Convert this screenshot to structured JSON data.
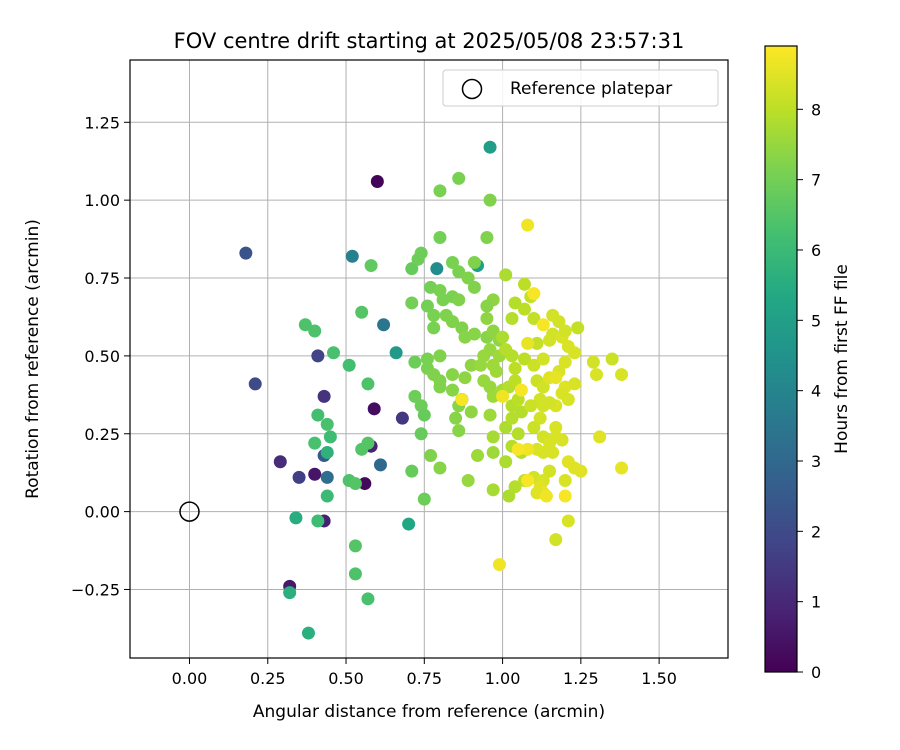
{
  "chart_data": {
    "type": "scatter",
    "title": "FOV centre drift starting at 2025/05/08 23:57:31",
    "xlabel": "Angular distance from reference (arcmin)",
    "ylabel": "Rotation from reference (arcmin)",
    "xlim": [
      -0.19,
      1.72
    ],
    "ylim": [
      -0.47,
      1.45
    ],
    "x_ticks": [
      0.0,
      0.25,
      0.5,
      0.75,
      1.0,
      1.25,
      1.5
    ],
    "x_tick_labels": [
      "0.00",
      "0.25",
      "0.50",
      "0.75",
      "1.00",
      "1.25",
      "1.50"
    ],
    "y_ticks": [
      -0.25,
      0.0,
      0.25,
      0.5,
      0.75,
      1.0,
      1.25
    ],
    "y_tick_labels": [
      "−0.25",
      "0.00",
      "0.25",
      "0.50",
      "0.75",
      "1.00",
      "1.25"
    ],
    "grid": true,
    "legend": {
      "placement": "top-right",
      "entries": [
        {
          "label": "Reference platepar",
          "marker": "open-circle",
          "color": "#000000"
        }
      ]
    },
    "reference_point": {
      "x": 0.0,
      "y": 0.0
    },
    "colorbar": {
      "label": "Hours from first FF file",
      "colormap": "viridis",
      "range": [
        0,
        8.9
      ],
      "ticks": [
        0,
        1,
        2,
        3,
        4,
        5,
        6,
        7,
        8
      ],
      "tick_labels": [
        "0",
        "1",
        "2",
        "3",
        "4",
        "5",
        "6",
        "7",
        "8"
      ]
    },
    "points": [
      {
        "x": 0.6,
        "y": 1.06,
        "h": 0.1
      },
      {
        "x": 0.56,
        "y": 0.09,
        "h": 0.2
      },
      {
        "x": 0.59,
        "y": 0.33,
        "h": 0.3
      },
      {
        "x": 0.4,
        "y": 0.12,
        "h": 0.5
      },
      {
        "x": 0.32,
        "y": -0.24,
        "h": 0.6
      },
      {
        "x": 0.43,
        "y": -0.03,
        "h": 0.8
      },
      {
        "x": 0.58,
        "y": 0.21,
        "h": 0.9
      },
      {
        "x": 0.29,
        "y": 0.16,
        "h": 1.1
      },
      {
        "x": 0.43,
        "y": 0.37,
        "h": 1.3
      },
      {
        "x": 0.68,
        "y": 0.3,
        "h": 1.4
      },
      {
        "x": 0.35,
        "y": 0.11,
        "h": 1.6
      },
      {
        "x": 0.41,
        "y": 0.5,
        "h": 1.8
      },
      {
        "x": 0.21,
        "y": 0.41,
        "h": 2.0
      },
      {
        "x": 0.18,
        "y": 0.83,
        "h": 2.3
      },
      {
        "x": 0.43,
        "y": 0.18,
        "h": 2.5
      },
      {
        "x": 0.61,
        "y": 0.15,
        "h": 3.0
      },
      {
        "x": 0.44,
        "y": 0.11,
        "h": 3.2
      },
      {
        "x": 0.62,
        "y": 0.6,
        "h": 3.5
      },
      {
        "x": 0.52,
        "y": 0.82,
        "h": 3.8
      },
      {
        "x": 0.87,
        "y": 0.36,
        "h": 3.9
      },
      {
        "x": 0.79,
        "y": 0.78,
        "h": 4.3
      },
      {
        "x": 0.66,
        "y": 0.51,
        "h": 4.8
      },
      {
        "x": 0.96,
        "y": 1.17,
        "h": 4.9
      },
      {
        "x": 0.7,
        "y": -0.04,
        "h": 5.3
      },
      {
        "x": 0.34,
        "y": -0.02,
        "h": 5.5
      },
      {
        "x": 0.32,
        "y": -0.26,
        "h": 5.6
      },
      {
        "x": 0.38,
        "y": -0.39,
        "h": 5.6
      },
      {
        "x": 0.92,
        "y": 0.79,
        "h": 5.0
      },
      {
        "x": 0.44,
        "y": 0.19,
        "h": 5.7
      },
      {
        "x": 0.41,
        "y": -0.03,
        "h": 6.1
      },
      {
        "x": 0.44,
        "y": 0.05,
        "h": 6.0
      },
      {
        "x": 0.45,
        "y": 0.24,
        "h": 6.1
      },
      {
        "x": 0.41,
        "y": 0.31,
        "h": 6.2
      },
      {
        "x": 0.44,
        "y": 0.28,
        "h": 6.3
      },
      {
        "x": 0.4,
        "y": 0.22,
        "h": 6.3
      },
      {
        "x": 0.37,
        "y": 0.6,
        "h": 6.4
      },
      {
        "x": 0.4,
        "y": 0.58,
        "h": 6.4
      },
      {
        "x": 0.46,
        "y": 0.51,
        "h": 6.3
      },
      {
        "x": 0.51,
        "y": 0.47,
        "h": 6.2
      },
      {
        "x": 0.51,
        "y": 0.1,
        "h": 6.4
      },
      {
        "x": 0.53,
        "y": 0.09,
        "h": 6.5
      },
      {
        "x": 0.53,
        "y": -0.11,
        "h": 6.5
      },
      {
        "x": 0.53,
        "y": -0.2,
        "h": 6.4
      },
      {
        "x": 0.57,
        "y": -0.28,
        "h": 6.3
      },
      {
        "x": 0.55,
        "y": 0.2,
        "h": 6.5
      },
      {
        "x": 0.57,
        "y": 0.22,
        "h": 6.5
      },
      {
        "x": 0.57,
        "y": 0.41,
        "h": 6.4
      },
      {
        "x": 0.55,
        "y": 0.64,
        "h": 6.5
      },
      {
        "x": 0.58,
        "y": 0.79,
        "h": 6.7
      },
      {
        "x": 0.71,
        "y": 0.78,
        "h": 6.8
      },
      {
        "x": 0.71,
        "y": 0.13,
        "h": 6.8
      },
      {
        "x": 0.75,
        "y": 0.04,
        "h": 6.9
      },
      {
        "x": 0.74,
        "y": 0.25,
        "h": 6.8
      },
      {
        "x": 0.72,
        "y": 0.37,
        "h": 6.9
      },
      {
        "x": 0.74,
        "y": 0.34,
        "h": 6.9
      },
      {
        "x": 0.75,
        "y": 0.31,
        "h": 6.8
      },
      {
        "x": 0.72,
        "y": 0.48,
        "h": 6.9
      },
      {
        "x": 0.71,
        "y": 0.67,
        "h": 7.0
      },
      {
        "x": 0.76,
        "y": 0.66,
        "h": 7.0
      },
      {
        "x": 0.77,
        "y": 0.72,
        "h": 7.0
      },
      {
        "x": 0.73,
        "y": 0.81,
        "h": 6.9
      },
      {
        "x": 0.74,
        "y": 0.83,
        "h": 6.9
      },
      {
        "x": 0.8,
        "y": 0.88,
        "h": 7.0
      },
      {
        "x": 0.8,
        "y": 1.03,
        "h": 7.1
      },
      {
        "x": 0.86,
        "y": 1.07,
        "h": 7.1
      },
      {
        "x": 0.96,
        "y": 1.0,
        "h": 7.2
      },
      {
        "x": 0.95,
        "y": 0.88,
        "h": 7.2
      },
      {
        "x": 0.84,
        "y": 0.8,
        "h": 7.1
      },
      {
        "x": 0.86,
        "y": 0.77,
        "h": 7.1
      },
      {
        "x": 0.91,
        "y": 0.8,
        "h": 7.2
      },
      {
        "x": 0.91,
        "y": 0.72,
        "h": 7.2
      },
      {
        "x": 0.89,
        "y": 0.75,
        "h": 7.2
      },
      {
        "x": 0.8,
        "y": 0.71,
        "h": 7.1
      },
      {
        "x": 0.81,
        "y": 0.68,
        "h": 7.1
      },
      {
        "x": 0.84,
        "y": 0.69,
        "h": 7.1
      },
      {
        "x": 0.86,
        "y": 0.68,
        "h": 7.2
      },
      {
        "x": 0.82,
        "y": 0.63,
        "h": 7.2
      },
      {
        "x": 0.78,
        "y": 0.63,
        "h": 7.1
      },
      {
        "x": 0.78,
        "y": 0.59,
        "h": 7.1
      },
      {
        "x": 0.84,
        "y": 0.61,
        "h": 7.2
      },
      {
        "x": 0.87,
        "y": 0.59,
        "h": 7.2
      },
      {
        "x": 0.88,
        "y": 0.56,
        "h": 7.3
      },
      {
        "x": 0.91,
        "y": 0.57,
        "h": 7.3
      },
      {
        "x": 0.95,
        "y": 0.56,
        "h": 7.3
      },
      {
        "x": 0.97,
        "y": 0.58,
        "h": 7.4
      },
      {
        "x": 0.99,
        "y": 0.55,
        "h": 7.4
      },
      {
        "x": 0.95,
        "y": 0.62,
        "h": 7.4
      },
      {
        "x": 0.97,
        "y": 0.68,
        "h": 7.4
      },
      {
        "x": 0.95,
        "y": 0.66,
        "h": 7.3
      },
      {
        "x": 0.8,
        "y": 0.5,
        "h": 7.2
      },
      {
        "x": 0.76,
        "y": 0.49,
        "h": 7.1
      },
      {
        "x": 0.76,
        "y": 0.46,
        "h": 7.1
      },
      {
        "x": 0.78,
        "y": 0.44,
        "h": 7.2
      },
      {
        "x": 0.8,
        "y": 0.4,
        "h": 7.2
      },
      {
        "x": 0.8,
        "y": 0.42,
        "h": 7.2
      },
      {
        "x": 0.84,
        "y": 0.44,
        "h": 7.3
      },
      {
        "x": 0.84,
        "y": 0.39,
        "h": 7.3
      },
      {
        "x": 0.86,
        "y": 0.34,
        "h": 7.3
      },
      {
        "x": 0.85,
        "y": 0.3,
        "h": 7.3
      },
      {
        "x": 0.86,
        "y": 0.26,
        "h": 7.3
      },
      {
        "x": 0.88,
        "y": 0.43,
        "h": 7.4
      },
      {
        "x": 0.9,
        "y": 0.47,
        "h": 7.4
      },
      {
        "x": 0.9,
        "y": 0.32,
        "h": 7.4
      },
      {
        "x": 0.93,
        "y": 0.47,
        "h": 7.5
      },
      {
        "x": 0.94,
        "y": 0.5,
        "h": 7.5
      },
      {
        "x": 0.96,
        "y": 0.52,
        "h": 7.5
      },
      {
        "x": 0.96,
        "y": 0.4,
        "h": 7.5
      },
      {
        "x": 0.94,
        "y": 0.42,
        "h": 7.5
      },
      {
        "x": 0.97,
        "y": 0.47,
        "h": 7.6
      },
      {
        "x": 0.99,
        "y": 0.5,
        "h": 7.6
      },
      {
        "x": 0.98,
        "y": 0.45,
        "h": 7.6
      },
      {
        "x": 1.0,
        "y": 0.39,
        "h": 7.7
      },
      {
        "x": 0.97,
        "y": 0.37,
        "h": 7.6
      },
      {
        "x": 0.96,
        "y": 0.31,
        "h": 7.6
      },
      {
        "x": 0.97,
        "y": 0.24,
        "h": 7.7
      },
      {
        "x": 0.97,
        "y": 0.19,
        "h": 7.6
      },
      {
        "x": 0.89,
        "y": 0.1,
        "h": 7.5
      },
      {
        "x": 0.77,
        "y": 0.18,
        "h": 7.2
      },
      {
        "x": 0.8,
        "y": 0.14,
        "h": 7.3
      },
      {
        "x": 0.92,
        "y": 0.18,
        "h": 7.6
      },
      {
        "x": 0.97,
        "y": 0.07,
        "h": 7.7
      },
      {
        "x": 1.01,
        "y": 0.16,
        "h": 7.8
      },
      {
        "x": 1.02,
        "y": 0.05,
        "h": 7.8
      },
      {
        "x": 1.04,
        "y": 0.08,
        "h": 7.9
      },
      {
        "x": 1.07,
        "y": 0.1,
        "h": 8.0
      },
      {
        "x": 1.03,
        "y": 0.21,
        "h": 7.9
      },
      {
        "x": 1.06,
        "y": 0.19,
        "h": 7.9
      },
      {
        "x": 1.05,
        "y": 0.25,
        "h": 7.9
      },
      {
        "x": 1.01,
        "y": 0.27,
        "h": 7.8
      },
      {
        "x": 1.03,
        "y": 0.3,
        "h": 7.9
      },
      {
        "x": 1.06,
        "y": 0.32,
        "h": 7.9
      },
      {
        "x": 1.03,
        "y": 0.34,
        "h": 7.9
      },
      {
        "x": 1.05,
        "y": 0.36,
        "h": 8.0
      },
      {
        "x": 1.02,
        "y": 0.4,
        "h": 7.9
      },
      {
        "x": 1.04,
        "y": 0.42,
        "h": 8.0
      },
      {
        "x": 1.04,
        "y": 0.46,
        "h": 8.0
      },
      {
        "x": 1.03,
        "y": 0.5,
        "h": 7.9
      },
      {
        "x": 1.07,
        "y": 0.49,
        "h": 8.0
      },
      {
        "x": 1.01,
        "y": 0.52,
        "h": 7.9
      },
      {
        "x": 1.0,
        "y": 0.56,
        "h": 7.8
      },
      {
        "x": 1.03,
        "y": 0.62,
        "h": 7.9
      },
      {
        "x": 1.04,
        "y": 0.67,
        "h": 7.9
      },
      {
        "x": 1.07,
        "y": 0.65,
        "h": 8.0
      },
      {
        "x": 1.01,
        "y": 0.76,
        "h": 7.8
      },
      {
        "x": 1.07,
        "y": 0.73,
        "h": 8.0
      },
      {
        "x": 1.09,
        "y": 0.69,
        "h": 8.1
      },
      {
        "x": 1.1,
        "y": 0.62,
        "h": 8.1
      },
      {
        "x": 1.11,
        "y": 0.54,
        "h": 8.1
      },
      {
        "x": 1.08,
        "y": 0.54,
        "h": 8.6
      },
      {
        "x": 1.1,
        "y": 0.47,
        "h": 8.2
      },
      {
        "x": 1.11,
        "y": 0.42,
        "h": 8.2
      },
      {
        "x": 1.13,
        "y": 0.4,
        "h": 8.3
      },
      {
        "x": 1.13,
        "y": 0.49,
        "h": 8.3
      },
      {
        "x": 1.15,
        "y": 0.55,
        "h": 8.3
      },
      {
        "x": 1.16,
        "y": 0.57,
        "h": 8.3
      },
      {
        "x": 1.19,
        "y": 0.56,
        "h": 8.4
      },
      {
        "x": 1.16,
        "y": 0.63,
        "h": 8.3
      },
      {
        "x": 1.18,
        "y": 0.61,
        "h": 8.3
      },
      {
        "x": 1.2,
        "y": 0.58,
        "h": 8.3
      },
      {
        "x": 1.21,
        "y": 0.53,
        "h": 8.4
      },
      {
        "x": 1.23,
        "y": 0.51,
        "h": 8.4
      },
      {
        "x": 1.2,
        "y": 0.48,
        "h": 8.4
      },
      {
        "x": 1.18,
        "y": 0.45,
        "h": 8.4
      },
      {
        "x": 1.15,
        "y": 0.43,
        "h": 8.5
      },
      {
        "x": 1.17,
        "y": 0.43,
        "h": 8.6
      },
      {
        "x": 1.2,
        "y": 0.4,
        "h": 8.5
      },
      {
        "x": 1.23,
        "y": 0.41,
        "h": 8.4
      },
      {
        "x": 1.19,
        "y": 0.38,
        "h": 8.4
      },
      {
        "x": 1.21,
        "y": 0.36,
        "h": 8.4
      },
      {
        "x": 1.17,
        "y": 0.34,
        "h": 8.4
      },
      {
        "x": 1.15,
        "y": 0.35,
        "h": 8.3
      },
      {
        "x": 1.13,
        "y": 0.34,
        "h": 8.3
      },
      {
        "x": 1.12,
        "y": 0.36,
        "h": 8.3
      },
      {
        "x": 1.09,
        "y": 0.34,
        "h": 8.2
      },
      {
        "x": 1.12,
        "y": 0.3,
        "h": 8.3
      },
      {
        "x": 1.1,
        "y": 0.27,
        "h": 8.2
      },
      {
        "x": 1.13,
        "y": 0.24,
        "h": 8.3
      },
      {
        "x": 1.15,
        "y": 0.22,
        "h": 8.4
      },
      {
        "x": 1.17,
        "y": 0.27,
        "h": 8.4
      },
      {
        "x": 1.17,
        "y": 0.24,
        "h": 8.4
      },
      {
        "x": 1.19,
        "y": 0.23,
        "h": 8.4
      },
      {
        "x": 1.16,
        "y": 0.19,
        "h": 8.4
      },
      {
        "x": 1.13,
        "y": 0.19,
        "h": 8.4
      },
      {
        "x": 1.11,
        "y": 0.2,
        "h": 8.4
      },
      {
        "x": 1.08,
        "y": 0.2,
        "h": 8.7
      },
      {
        "x": 1.1,
        "y": 0.11,
        "h": 8.3
      },
      {
        "x": 1.13,
        "y": 0.1,
        "h": 8.4
      },
      {
        "x": 1.15,
        "y": 0.13,
        "h": 8.3
      },
      {
        "x": 1.12,
        "y": 0.08,
        "h": 8.5
      },
      {
        "x": 1.13,
        "y": 0.06,
        "h": 8.6
      },
      {
        "x": 1.11,
        "y": 0.06,
        "h": 8.5
      },
      {
        "x": 1.14,
        "y": 0.05,
        "h": 8.7
      },
      {
        "x": 1.2,
        "y": 0.05,
        "h": 8.8
      },
      {
        "x": 1.2,
        "y": 0.1,
        "h": 8.4
      },
      {
        "x": 1.21,
        "y": 0.16,
        "h": 8.5
      },
      {
        "x": 1.23,
        "y": 0.14,
        "h": 8.5
      },
      {
        "x": 1.25,
        "y": 0.13,
        "h": 8.5
      },
      {
        "x": 1.21,
        "y": -0.03,
        "h": 8.4
      },
      {
        "x": 1.17,
        "y": -0.09,
        "h": 8.3
      },
      {
        "x": 0.99,
        "y": -0.17,
        "h": 8.7
      },
      {
        "x": 1.08,
        "y": 0.92,
        "h": 8.7
      },
      {
        "x": 1.1,
        "y": 0.7,
        "h": 8.8
      },
      {
        "x": 1.13,
        "y": 0.6,
        "h": 8.8
      },
      {
        "x": 1.06,
        "y": 0.39,
        "h": 8.8
      },
      {
        "x": 1.0,
        "y": 0.37,
        "h": 8.7
      },
      {
        "x": 0.87,
        "y": 0.36,
        "h": 8.8
      },
      {
        "x": 1.05,
        "y": 0.2,
        "h": 8.8
      },
      {
        "x": 1.08,
        "y": 0.1,
        "h": 8.8
      },
      {
        "x": 1.24,
        "y": 0.59,
        "h": 8.1
      },
      {
        "x": 1.29,
        "y": 0.48,
        "h": 8.3
      },
      {
        "x": 1.3,
        "y": 0.44,
        "h": 8.4
      },
      {
        "x": 1.35,
        "y": 0.49,
        "h": 8.2
      },
      {
        "x": 1.38,
        "y": 0.44,
        "h": 8.4
      },
      {
        "x": 1.31,
        "y": 0.24,
        "h": 8.5
      },
      {
        "x": 1.38,
        "y": 0.14,
        "h": 8.6
      }
    ]
  }
}
